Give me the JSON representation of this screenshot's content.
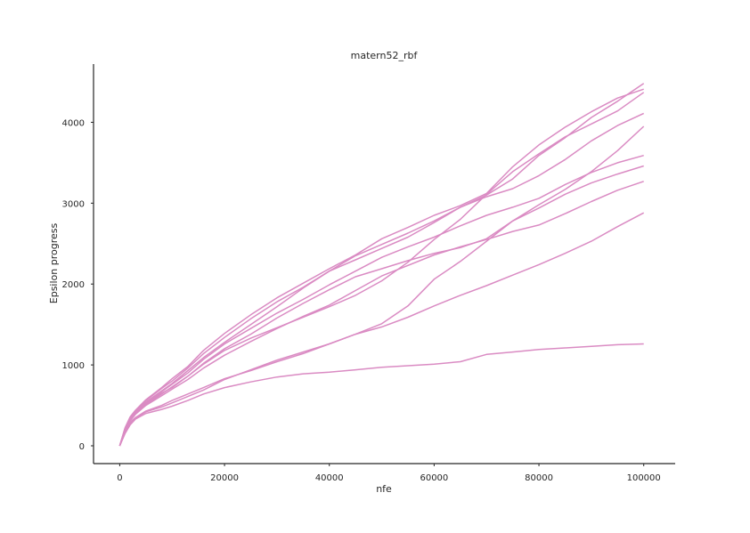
{
  "chart_data": {
    "type": "line",
    "title": "matern52_rbf",
    "xlabel": "nfe",
    "ylabel": "Epsilon progress",
    "xlim": [
      -5000,
      106000
    ],
    "ylim": [
      -220,
      4720
    ],
    "xticks": [
      0,
      20000,
      40000,
      60000,
      80000,
      100000
    ],
    "yticks": [
      0,
      1000,
      2000,
      3000,
      4000
    ],
    "xtick_labels": [
      "0",
      "20000",
      "40000",
      "60000",
      "80000",
      "100000"
    ],
    "ytick_labels": [
      "0",
      "1000",
      "2000",
      "3000",
      "4000"
    ],
    "grid": false,
    "legend": "none",
    "line_color": "#DA8BC3",
    "axis_color": "#262626",
    "series": [
      {
        "x": [
          0,
          1000,
          2000,
          3000,
          5000,
          8000,
          10000,
          13000,
          16000,
          20000,
          25000,
          30000,
          35000,
          40000,
          45000,
          50000,
          55000,
          60000,
          65000,
          70000,
          75000,
          80000,
          85000,
          90000,
          95000,
          100000
        ],
        "y": [
          0,
          150,
          260,
          330,
          400,
          450,
          490,
          560,
          640,
          720,
          790,
          850,
          890,
          910,
          940,
          970,
          990,
          1010,
          1040,
          1130,
          1160,
          1190,
          1210,
          1230,
          1250,
          1260
        ]
      },
      {
        "x": [
          0,
          1000,
          2000,
          3000,
          5000,
          8000,
          10000,
          13000,
          16000,
          20000,
          25000,
          30000,
          35000,
          40000,
          45000,
          50000,
          55000,
          60000,
          65000,
          70000,
          75000,
          80000,
          85000,
          90000,
          95000,
          100000
        ],
        "y": [
          0,
          160,
          280,
          340,
          420,
          480,
          530,
          610,
          690,
          820,
          940,
          1060,
          1160,
          1260,
          1380,
          1470,
          1590,
          1730,
          1860,
          1980,
          2110,
          2240,
          2380,
          2530,
          2710,
          2880
        ]
      },
      {
        "x": [
          0,
          1000,
          2000,
          3000,
          5000,
          8000,
          10000,
          13000,
          16000,
          20000,
          25000,
          30000,
          35000,
          40000,
          45000,
          50000,
          55000,
          60000,
          65000,
          70000,
          75000,
          80000,
          85000,
          90000,
          95000,
          100000
        ],
        "y": [
          0,
          170,
          290,
          350,
          430,
          500,
          560,
          640,
          720,
          830,
          930,
          1040,
          1140,
          1260,
          1380,
          1510,
          1730,
          2060,
          2280,
          2530,
          2780,
          2980,
          3170,
          3390,
          3650,
          3950
        ]
      },
      {
        "x": [
          0,
          1000,
          2000,
          3000,
          5000,
          8000,
          10000,
          13000,
          16000,
          20000,
          25000,
          30000,
          35000,
          40000,
          45000,
          50000,
          55000,
          60000,
          65000,
          70000,
          75000,
          80000,
          85000,
          90000,
          95000,
          100000
        ],
        "y": [
          0,
          200,
          330,
          410,
          520,
          650,
          720,
          860,
          1010,
          1180,
          1330,
          1460,
          1590,
          1720,
          1860,
          2040,
          2270,
          2550,
          2800,
          3110,
          3390,
          3610,
          3820,
          3980,
          4140,
          4370
        ]
      },
      {
        "x": [
          0,
          1000,
          2000,
          3000,
          5000,
          8000,
          10000,
          13000,
          16000,
          20000,
          25000,
          30000,
          35000,
          40000,
          45000,
          50000,
          55000,
          60000,
          65000,
          70000,
          75000,
          80000,
          85000,
          90000,
          95000,
          100000
        ],
        "y": [
          0,
          210,
          340,
          420,
          540,
          680,
          770,
          930,
          1090,
          1280,
          1500,
          1720,
          1950,
          2160,
          2350,
          2490,
          2630,
          2780,
          2950,
          3100,
          3300,
          3590,
          3810,
          4060,
          4260,
          4480
        ]
      },
      {
        "x": [
          0,
          1000,
          2000,
          3000,
          5000,
          8000,
          10000,
          13000,
          16000,
          20000,
          25000,
          30000,
          35000,
          40000,
          45000,
          50000,
          55000,
          60000,
          65000,
          70000,
          75000,
          80000,
          85000,
          90000,
          95000,
          100000
        ],
        "y": [
          0,
          220,
          360,
          440,
          570,
          720,
          830,
          980,
          1180,
          1390,
          1620,
          1830,
          2010,
          2190,
          2360,
          2560,
          2700,
          2850,
          2970,
          3120,
          3450,
          3720,
          3940,
          4130,
          4300,
          4410
        ]
      },
      {
        "x": [
          0,
          1000,
          2000,
          3000,
          5000,
          8000,
          10000,
          13000,
          16000,
          20000,
          25000,
          30000,
          35000,
          40000,
          45000,
          50000,
          55000,
          60000,
          65000,
          70000,
          75000,
          80000,
          85000,
          90000,
          95000,
          100000
        ],
        "y": [
          0,
          200,
          330,
          410,
          530,
          670,
          760,
          900,
          1070,
          1260,
          1450,
          1640,
          1810,
          1990,
          2160,
          2330,
          2460,
          2580,
          2720,
          2850,
          2950,
          3060,
          3230,
          3380,
          3500,
          3590
        ]
      },
      {
        "x": [
          0,
          1000,
          2000,
          3000,
          5000,
          8000,
          10000,
          13000,
          16000,
          20000,
          25000,
          30000,
          35000,
          40000,
          45000,
          50000,
          55000,
          60000,
          65000,
          70000,
          75000,
          80000,
          85000,
          90000,
          95000,
          100000
        ],
        "y": [
          0,
          190,
          320,
          400,
          510,
          640,
          730,
          860,
          1020,
          1200,
          1380,
          1580,
          1760,
          1930,
          2090,
          2190,
          2290,
          2380,
          2450,
          2560,
          2780,
          2940,
          3110,
          3250,
          3360,
          3460
        ]
      },
      {
        "x": [
          0,
          1000,
          2000,
          3000,
          5000,
          8000,
          10000,
          13000,
          16000,
          20000,
          25000,
          30000,
          35000,
          40000,
          45000,
          50000,
          55000,
          60000,
          65000,
          70000,
          75000,
          80000,
          85000,
          90000,
          95000,
          100000
        ],
        "y": [
          0,
          180,
          310,
          390,
          500,
          620,
          700,
          820,
          960,
          1120,
          1290,
          1450,
          1600,
          1740,
          1920,
          2100,
          2230,
          2360,
          2460,
          2550,
          2650,
          2730,
          2870,
          3020,
          3160,
          3270
        ]
      },
      {
        "x": [
          0,
          1000,
          2000,
          3000,
          5000,
          8000,
          10000,
          13000,
          16000,
          20000,
          25000,
          30000,
          35000,
          40000,
          45000,
          50000,
          55000,
          60000,
          65000,
          70000,
          75000,
          80000,
          85000,
          90000,
          95000,
          100000
        ],
        "y": [
          0,
          210,
          350,
          430,
          560,
          710,
          800,
          960,
          1140,
          1340,
          1570,
          1780,
          1960,
          2160,
          2300,
          2440,
          2580,
          2760,
          2950,
          3080,
          3180,
          3340,
          3540,
          3770,
          3960,
          4110
        ]
      }
    ]
  }
}
